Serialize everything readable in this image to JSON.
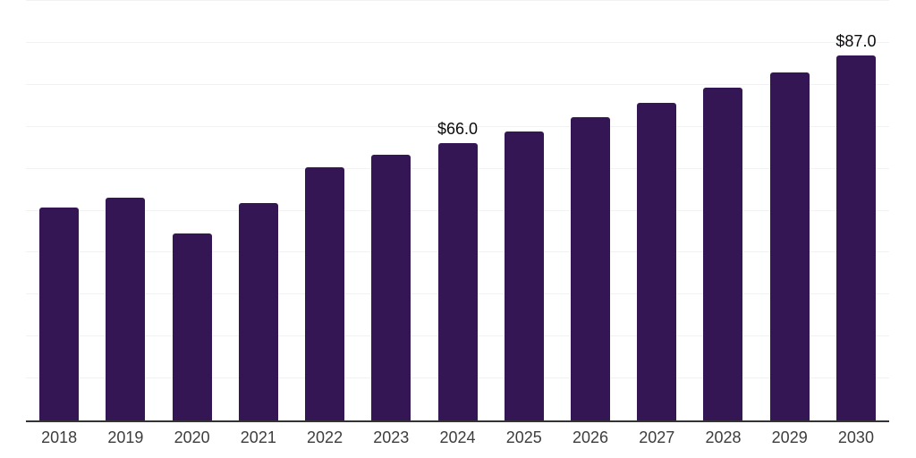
{
  "chart_data": {
    "type": "bar",
    "categories": [
      "2018",
      "2019",
      "2020",
      "2021",
      "2022",
      "2023",
      "2024",
      "2025",
      "2026",
      "2027",
      "2028",
      "2029",
      "2030"
    ],
    "values": [
      50.7,
      53.1,
      44.6,
      51.8,
      60.3,
      63.3,
      66.0,
      68.9,
      72.3,
      75.7,
      79.3,
      82.9,
      87.0
    ],
    "data_labels": {
      "2024": "$66.0",
      "2030": "$87.0"
    },
    "ylim": [
      0,
      100
    ],
    "grid_step": 10,
    "grid": "horizontal-only",
    "legend": "none",
    "title": "",
    "xlabel": "",
    "ylabel": "",
    "colors": {
      "bar": "#331653",
      "gridline": "#f2f2f2",
      "axis_line": "#333333",
      "tick_label": "#3d3d3d",
      "data_label": "#0a0a0a",
      "background": "#ffffff"
    }
  }
}
